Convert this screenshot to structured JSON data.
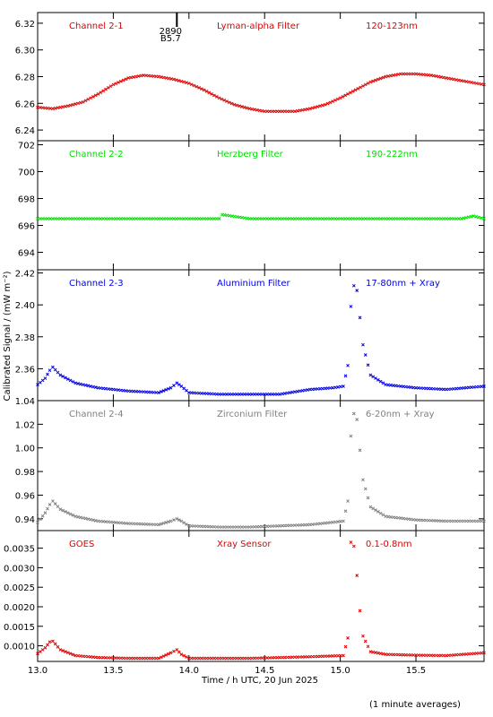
{
  "figure": {
    "ylabel": "Calibrated Signal / (mW m⁻²)",
    "xlabel": "Time / h UTC, 20 Jun 2025",
    "footnote": "(1 minute averages)",
    "marker": {
      "top": "2890",
      "bottom": "B5.7",
      "x": 13.92
    }
  },
  "chart_data": [
    {
      "type": "scatter",
      "name": "Channel 2-1",
      "filter": "Lyman-alpha Filter",
      "band": "120-123nm",
      "color": "#e00000",
      "xlim": [
        13.0,
        15.95
      ],
      "ylim": [
        6.232,
        6.328
      ],
      "yticks": [
        6.24,
        6.26,
        6.28,
        6.3,
        6.32
      ],
      "ytick_labels": [
        "6.24",
        "6.26",
        "6.28",
        "6.30",
        "6.32"
      ],
      "x": [
        13.0,
        13.1,
        13.2,
        13.3,
        13.4,
        13.5,
        13.6,
        13.7,
        13.8,
        13.9,
        14.0,
        14.1,
        14.2,
        14.3,
        14.4,
        14.5,
        14.6,
        14.7,
        14.8,
        14.9,
        15.0,
        15.1,
        15.2,
        15.3,
        15.4,
        15.5,
        15.6,
        15.7,
        15.8,
        15.95
      ],
      "y": [
        6.257,
        6.256,
        6.258,
        6.261,
        6.267,
        6.274,
        6.279,
        6.281,
        6.28,
        6.278,
        6.275,
        6.27,
        6.264,
        6.259,
        6.256,
        6.254,
        6.254,
        6.254,
        6.256,
        6.259,
        6.264,
        6.27,
        6.276,
        6.28,
        6.282,
        6.282,
        6.281,
        6.279,
        6.277,
        6.274
      ]
    },
    {
      "type": "scatter",
      "name": "Channel 2-2",
      "filter": "Herzberg Filter",
      "band": "190-222nm",
      "color": "#00e000",
      "xlim": [
        13.0,
        15.95
      ],
      "ylim": [
        692.7,
        702.3
      ],
      "yticks": [
        694,
        696,
        698,
        700,
        702
      ],
      "ytick_labels": [
        "694",
        "696",
        "698",
        "700",
        "702"
      ],
      "x": [
        13.0,
        13.2,
        13.4,
        13.6,
        13.8,
        14.0,
        14.2,
        14.22,
        14.4,
        14.6,
        14.8,
        15.0,
        15.2,
        15.4,
        15.6,
        15.8,
        15.88,
        15.95
      ],
      "y": [
        696.5,
        696.5,
        696.5,
        696.5,
        696.5,
        696.5,
        696.5,
        696.8,
        696.5,
        696.5,
        696.5,
        696.5,
        696.5,
        696.5,
        696.5,
        696.5,
        696.7,
        696.5
      ]
    },
    {
      "type": "scatter",
      "name": "Channel 2-3",
      "filter": "Aluminium Filter",
      "band": "17-80nm + Xray",
      "color": "#0000e0",
      "xlim": [
        13.0,
        15.95
      ],
      "ylim": [
        2.34,
        2.422
      ],
      "yticks": [
        2.36,
        2.38,
        2.4,
        2.42
      ],
      "ytick_labels": [
        "2.36",
        "2.38",
        "2.40",
        "2.42"
      ],
      "x": [
        13.0,
        13.05,
        13.08,
        13.1,
        13.15,
        13.25,
        13.4,
        13.6,
        13.8,
        13.88,
        13.92,
        13.95,
        14.0,
        14.2,
        14.4,
        14.6,
        14.8,
        14.95,
        15.02,
        15.05,
        15.07,
        15.09,
        15.11,
        15.13,
        15.15,
        15.2,
        15.3,
        15.5,
        15.7,
        15.95
      ],
      "y": [
        2.35,
        2.354,
        2.359,
        2.361,
        2.356,
        2.351,
        2.348,
        2.346,
        2.345,
        2.348,
        2.351,
        2.349,
        2.345,
        2.344,
        2.344,
        2.344,
        2.347,
        2.348,
        2.349,
        2.362,
        2.399,
        2.412,
        2.409,
        2.392,
        2.375,
        2.356,
        2.35,
        2.348,
        2.347,
        2.349
      ]
    },
    {
      "type": "scatter",
      "name": "Channel 2-4",
      "filter": "Zirconium Filter",
      "band": "6-20nm + Xray",
      "color": "#808080",
      "xlim": [
        13.0,
        15.95
      ],
      "ylim": [
        0.93,
        1.04
      ],
      "yticks": [
        0.94,
        0.96,
        0.98,
        1.0,
        1.02,
        1.04
      ],
      "ytick_labels": [
        "0.94",
        "0.96",
        "0.98",
        "1.00",
        "1.02",
        "1.04"
      ],
      "x": [
        13.0,
        13.05,
        13.08,
        13.1,
        13.15,
        13.25,
        13.4,
        13.6,
        13.8,
        13.88,
        13.92,
        13.95,
        14.0,
        14.2,
        14.4,
        14.6,
        14.8,
        14.95,
        15.02,
        15.05,
        15.07,
        15.09,
        15.11,
        15.13,
        15.15,
        15.2,
        15.3,
        15.5,
        15.7,
        15.95
      ],
      "y": [
        0.937,
        0.945,
        0.952,
        0.955,
        0.948,
        0.942,
        0.938,
        0.936,
        0.935,
        0.938,
        0.94,
        0.938,
        0.934,
        0.933,
        0.933,
        0.934,
        0.935,
        0.937,
        0.938,
        0.955,
        1.01,
        1.029,
        1.024,
        0.998,
        0.973,
        0.95,
        0.942,
        0.939,
        0.938,
        0.938
      ]
    },
    {
      "type": "scatter",
      "name": "GOES",
      "filter": "Xray Sensor",
      "band": "0.1-0.8nm",
      "color": "#e00000",
      "xlim": [
        13.0,
        15.95
      ],
      "ylim": [
        0.0006,
        0.00395
      ],
      "yticks": [
        0.001,
        0.0015,
        0.002,
        0.0025,
        0.003,
        0.0035
      ],
      "ytick_labels": [
        "0.0010",
        "0.0015",
        "0.0020",
        "0.0025",
        "0.0030",
        "0.0035"
      ],
      "x": [
        13.0,
        13.05,
        13.08,
        13.1,
        13.15,
        13.25,
        13.4,
        13.6,
        13.8,
        13.88,
        13.92,
        13.95,
        14.0,
        14.2,
        14.4,
        14.6,
        14.8,
        14.95,
        15.02,
        15.05,
        15.07,
        15.09,
        15.11,
        15.13,
        15.15,
        15.2,
        15.3,
        15.5,
        15.7,
        15.95
      ],
      "y": [
        0.0008,
        0.00095,
        0.0011,
        0.00112,
        0.0009,
        0.00075,
        0.0007,
        0.00068,
        0.00068,
        0.00082,
        0.0009,
        0.00078,
        0.00068,
        0.00068,
        0.00068,
        0.0007,
        0.00072,
        0.00074,
        0.00075,
        0.0012,
        0.00365,
        0.00355,
        0.0028,
        0.0019,
        0.00125,
        0.00085,
        0.00078,
        0.00076,
        0.00075,
        0.00082
      ]
    }
  ],
  "x_axis": {
    "ticks": [
      13.0,
      13.5,
      14.0,
      14.5,
      15.0,
      15.5
    ],
    "tick_labels": [
      "13.0",
      "13.5",
      "14.0",
      "14.5",
      "15.0",
      "15.5"
    ]
  }
}
